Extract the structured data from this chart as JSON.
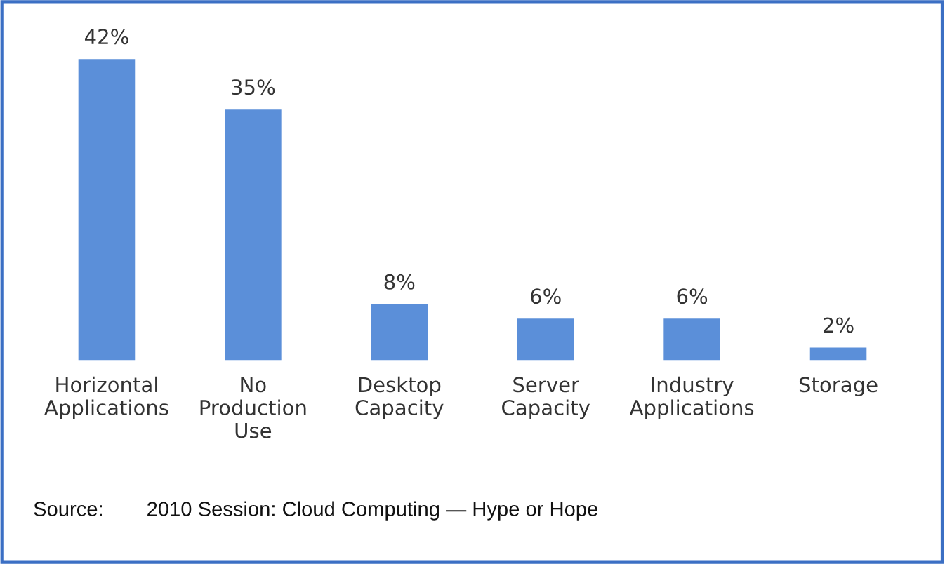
{
  "chart_data": {
    "type": "bar",
    "categories": [
      "Horizontal\nApplications",
      "No\nProduction\nUse",
      "Desktop\nCapacity",
      "Server\nCapacity",
      "Industry\nApplications",
      "Storage"
    ],
    "values": [
      42,
      35,
      8,
      6,
      6,
      2
    ],
    "value_labels": [
      "42%",
      "35%",
      "8%",
      "6%",
      "6%",
      "2%"
    ],
    "color": "#5b8fd9",
    "annotations": [
      "Source:",
      "2010 Session: Cloud Computing — Hype or Hope"
    ]
  }
}
